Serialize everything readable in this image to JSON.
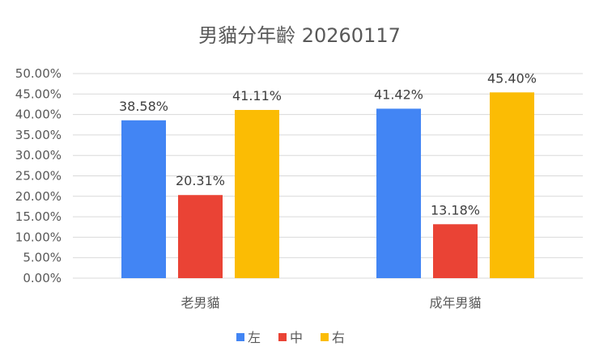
{
  "chart_data": {
    "type": "bar",
    "title": "男貓分年齡 20260117",
    "xlabel": "",
    "ylabel": "",
    "categories": [
      "老男貓",
      "成年男貓"
    ],
    "series": [
      {
        "name": "左",
        "color": "#4285f4",
        "values": [
          38.58,
          41.42
        ],
        "labels": [
          "38.58%",
          "41.42%"
        ]
      },
      {
        "name": "中",
        "color": "#ea4335",
        "values": [
          20.31,
          13.18
        ],
        "labels": [
          "20.31%",
          "13.18%"
        ]
      },
      {
        "name": "右",
        "color": "#fbbc04",
        "values": [
          41.11,
          45.4
        ],
        "labels": [
          "41.11%",
          "45.40%"
        ]
      }
    ],
    "ylim": [
      0,
      50
    ],
    "yticks": [
      "0.00%",
      "5.00%",
      "10.00%",
      "15.00%",
      "20.00%",
      "25.00%",
      "30.00%",
      "35.00%",
      "40.00%",
      "45.00%",
      "50.00%"
    ],
    "grid": true,
    "legend_position": "bottom"
  }
}
